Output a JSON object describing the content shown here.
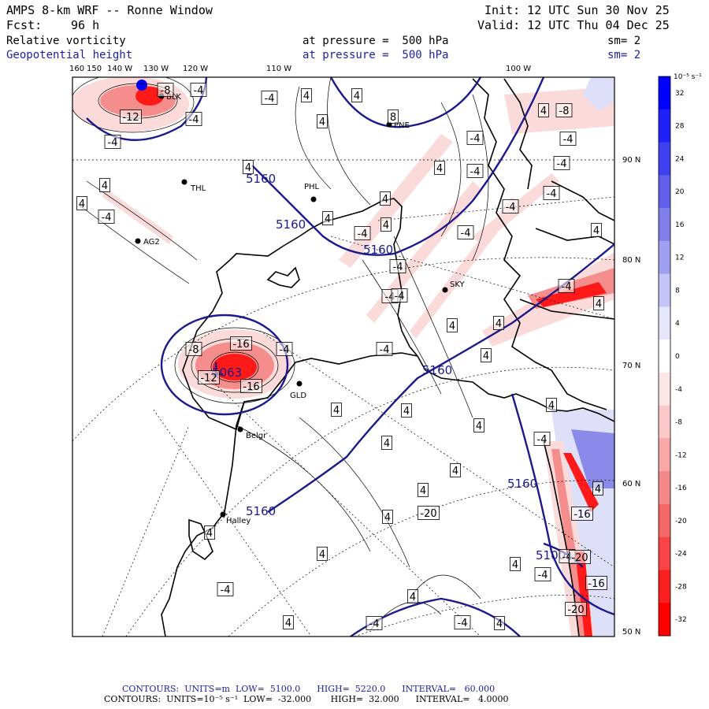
{
  "header": {
    "title": "AMPS 8-km WRF -- Ronne Window",
    "init": "Init: 12 UTC Sun 30 Nov 25",
    "fcst_label": "Fcst:",
    "fcst_value": "96 h",
    "valid": "Valid: 12 UTC Thu 04 Dec 25",
    "field1": "Relative vorticity",
    "field1_level": "at pressure =  500 hPa",
    "field1_sm": "sm= 2",
    "field2": "Geopotential height",
    "field2_level": "at pressure =  500 hPa",
    "field2_sm": "sm= 2"
  },
  "colors": {
    "height_contour": "#1a1a8c",
    "coast": "#000000",
    "neg_strong": "#ff1a1a",
    "neg_mid": "#f58d8d",
    "neg_weak": "#fbdada",
    "pos_strong": "#0000ff",
    "pos_mid": "#8a8ae8",
    "pos_weak": "#dedff8"
  },
  "top_labels": {
    "lon": [
      "160",
      "150",
      "140 W",
      "130 W",
      "120 W",
      "110 W",
      "100 W"
    ]
  },
  "right_labels": {
    "lat": [
      "90 N",
      "80 N",
      "70 N",
      "60 N",
      "50 N"
    ]
  },
  "stations": [
    {
      "name": "BLK"
    },
    {
      "name": "PNE"
    },
    {
      "name": "THL"
    },
    {
      "name": "PHL"
    },
    {
      "name": "AG2"
    },
    {
      "name": "SKY"
    },
    {
      "name": "GLD"
    },
    {
      "name": "Belgr"
    },
    {
      "name": "Halley"
    }
  ],
  "height_labels": [
    "5160",
    "5160",
    "5160",
    "5063",
    "5160",
    "5160",
    "5160",
    "5100"
  ],
  "vort_labels": [
    "-4",
    "4",
    "4",
    "4",
    "8",
    "-4",
    "-8",
    "-8",
    "-12",
    "-4",
    "-4",
    "4",
    "-4",
    "-4",
    "-4",
    "4",
    "-4",
    "-4",
    "4",
    "-4",
    "-4",
    "4",
    "4",
    "-4",
    "-4",
    "4",
    "-4",
    "4",
    "4",
    "-4",
    "-4",
    "4",
    "-8",
    "-16",
    "-4",
    "-12",
    "-16",
    "4",
    "-4",
    "4",
    "4",
    "4",
    "4",
    "-20",
    "-4",
    "4",
    "4",
    "4",
    "4",
    "4",
    "-4",
    "4",
    "4",
    "-4",
    "-4",
    "-16",
    "-20",
    "-4",
    "4",
    "-16",
    "-20",
    "-4",
    "4",
    "4",
    "4",
    "-4",
    "4",
    "4",
    "4"
  ],
  "colorbar": {
    "unit": "10⁻⁵ s⁻¹",
    "ticks": [
      "32",
      "28",
      "24",
      "20",
      "16",
      "12",
      "8",
      "4",
      "0",
      "-4",
      "-8",
      "-12",
      "-16",
      "-20",
      "-24",
      "-28",
      "-32"
    ]
  },
  "footer": {
    "line1": "CONTOURS:  UNITS=m  LOW=  5100.0      HIGH=  5220.0      INTERVAL=   60.000",
    "line2": "CONTOURS:  UNITS=10⁻⁵ s⁻¹  LOW=  -32.000       HIGH=  32.000      INTERVAL=   4.0000"
  }
}
